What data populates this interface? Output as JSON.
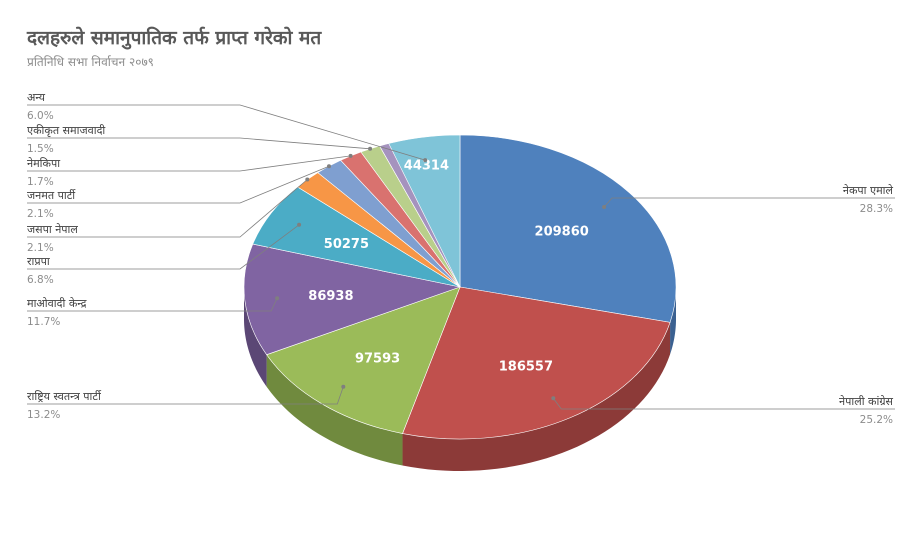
{
  "chart_data": {
    "type": "pie",
    "title": "दलहरुले समानुपातिक तर्फ प्राप्त गरेको मत",
    "subtitle": "प्रतिनिधि सभा निर्वाचन २०७९",
    "slices": [
      {
        "name": "नेकपा एमाले",
        "value": 209860,
        "pct": "28.3%",
        "data_label": "209860",
        "color": "#4f81bd",
        "side": "#3b6191"
      },
      {
        "name": "नेपाली कांग्रेस",
        "value": 186557,
        "pct": "25.2%",
        "data_label": "186557",
        "color": "#c0504d",
        "side": "#8c3a38"
      },
      {
        "name": "राष्ट्रिय स्वतन्त्र पार्टी",
        "value": 97593,
        "pct": "13.2%",
        "data_label": "97593",
        "color": "#9bbb59",
        "side": "#708a3e"
      },
      {
        "name": "माओवादी केन्द्र",
        "value": 86938,
        "pct": "11.7%",
        "data_label": "86938",
        "color": "#8064a2",
        "side": "#5b4775"
      },
      {
        "name": "राप्रपा",
        "value": 50275,
        "pct": "6.8%",
        "data_label": "50275",
        "color": "#4bacc6",
        "side": "#357d91"
      },
      {
        "name": "जसपा नेपाल",
        "value": 15500,
        "pct": "2.1%",
        "data_label": "",
        "color": "#f79646",
        "side": "#b56c30"
      },
      {
        "name": "जनमत पार्टी",
        "value": 15500,
        "pct": "2.1%",
        "data_label": "",
        "color": "#7f9fd0",
        "side": "#5c7399"
      },
      {
        "name": "नेमकिपा",
        "value": 12600,
        "pct": "1.7%",
        "data_label": "",
        "color": "#d9726f",
        "side": "#a05350"
      },
      {
        "name": "एकीकृत समाजवादी",
        "value": 11100,
        "pct": "1.5%",
        "data_label": "",
        "color": "#b9cf8b",
        "side": "#8a9c66"
      },
      {
        "name": "अन्य",
        "value": 44314,
        "pct": "6.0%",
        "data_label": "44314",
        "color": "#7fc4d8",
        "side": "#5e94a3"
      }
    ],
    "legend": "none",
    "label_style": "callout name and percentage"
  },
  "slice_mauve_color": "#a593be"
}
